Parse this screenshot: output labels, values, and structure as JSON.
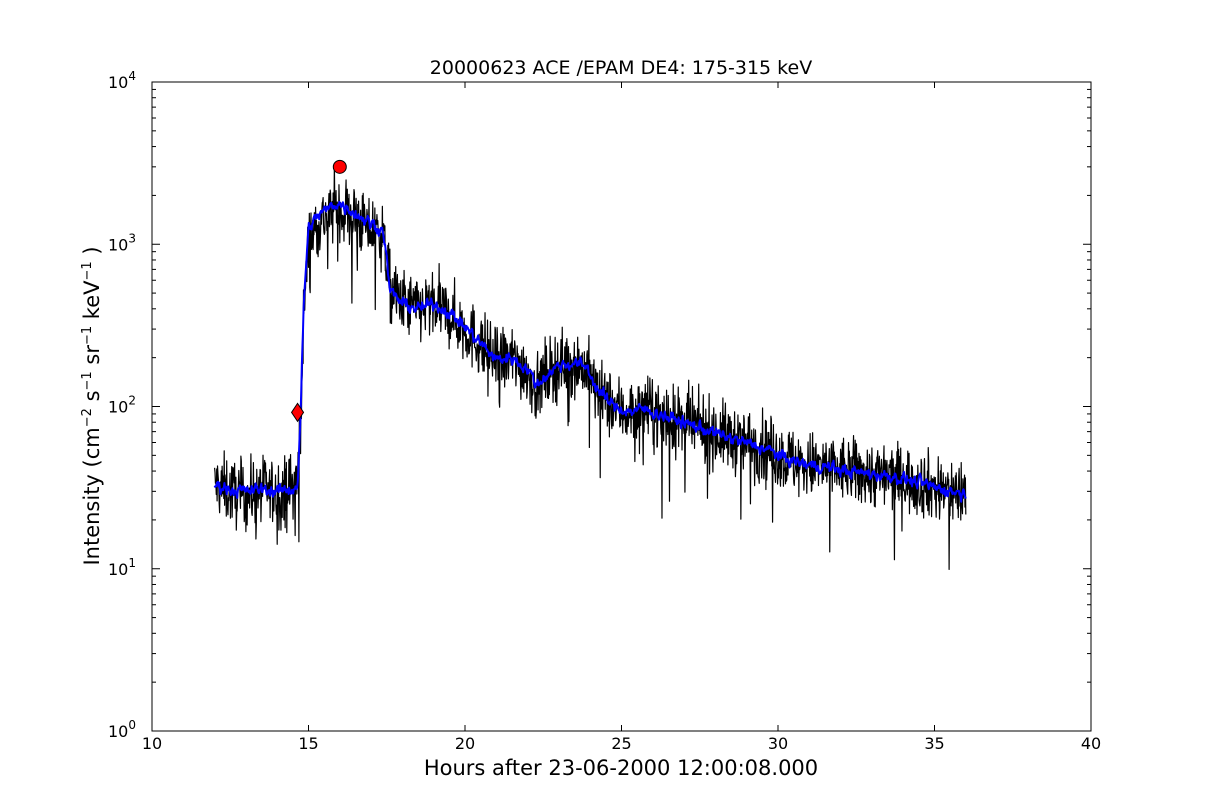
{
  "chart_data": {
    "type": "line",
    "title": "20000623 ACE /EPAM DE4: 175-315 keV",
    "xlabel": "Hours after 23-06-2000 12:00:08.000",
    "ylabel": {
      "text": "Intensity (cm",
      "sup1": "−2",
      "mid1": " s",
      "sup2": "−1",
      "mid2": " sr",
      "sup3": "−1",
      "mid3": " keV",
      "sup4": "−1",
      "end": " )"
    },
    "xlim": [
      10,
      40
    ],
    "ylim": [
      1,
      10000
    ],
    "yscale": "log",
    "grid": false,
    "x_ticks": [
      "10",
      "15",
      "20",
      "25",
      "30",
      "35",
      "40"
    ],
    "y_ticks": [
      {
        "base": "10",
        "exp": "0"
      },
      {
        "base": "10",
        "exp": "1"
      },
      {
        "base": "10",
        "exp": "2"
      },
      {
        "base": "10",
        "exp": "3"
      },
      {
        "base": "10",
        "exp": "4"
      }
    ],
    "series": [
      {
        "color": "#000000",
        "style": "raw-noisy",
        "x": [
          12.0,
          12.5,
          13.0,
          13.5,
          14.0,
          14.5,
          14.65,
          14.75,
          14.85,
          15.0,
          15.3,
          15.6,
          15.9,
          16.2,
          16.6,
          17.0,
          17.4,
          17.6,
          18.0,
          18.5,
          19.0,
          19.5,
          20.0,
          20.5,
          21.0,
          21.5,
          22.0,
          22.3,
          22.5,
          23.0,
          23.5,
          23.9,
          24.2,
          24.7,
          25.2,
          25.7,
          26.2,
          26.7,
          27.2,
          27.7,
          28.2,
          28.7,
          29.2,
          29.7,
          30.2,
          30.7,
          31.2,
          31.7,
          32.2,
          32.7,
          33.2,
          33.7,
          34.2,
          34.7,
          35.2,
          35.6,
          36.0
        ],
        "y": [
          33,
          30,
          28,
          31,
          29,
          32,
          35,
          90,
          380,
          1050,
          1350,
          1500,
          1700,
          1600,
          1400,
          1250,
          1100,
          530,
          430,
          400,
          420,
          370,
          300,
          240,
          190,
          195,
          165,
          125,
          155,
          180,
          185,
          170,
          125,
          100,
          92,
          95,
          90,
          82,
          76,
          72,
          66,
          62,
          58,
          54,
          48,
          44,
          43,
          42,
          40,
          39,
          38,
          37,
          35,
          33,
          31,
          30,
          29
        ],
        "noise": 0.45
      },
      {
        "color": "#0000ff",
        "style": "smoothed",
        "x": [
          12.0,
          12.5,
          13.0,
          13.5,
          14.0,
          14.5,
          14.65,
          14.75,
          14.85,
          15.0,
          15.3,
          15.6,
          15.9,
          16.2,
          16.6,
          17.0,
          17.4,
          17.6,
          18.0,
          18.5,
          19.0,
          19.5,
          20.0,
          20.5,
          21.0,
          21.5,
          22.0,
          22.3,
          22.5,
          23.0,
          23.5,
          23.9,
          24.2,
          24.7,
          25.2,
          25.7,
          26.2,
          26.7,
          27.2,
          27.7,
          28.2,
          28.7,
          29.2,
          29.7,
          30.2,
          30.7,
          31.2,
          31.7,
          32.2,
          32.7,
          33.2,
          33.7,
          34.2,
          34.7,
          35.2,
          35.6,
          36.0
        ],
        "y": [
          33,
          31,
          30,
          31,
          30,
          31,
          33,
          90,
          450,
          1250,
          1500,
          1650,
          1800,
          1700,
          1500,
          1350,
          1200,
          520,
          430,
          400,
          430,
          380,
          310,
          245,
          195,
          200,
          170,
          135,
          150,
          180,
          185,
          175,
          130,
          102,
          93,
          96,
          90,
          83,
          77,
          72,
          66,
          62,
          58,
          54,
          48,
          45,
          43,
          42,
          40,
          39,
          38,
          37,
          35,
          33,
          31,
          30,
          29
        ],
        "noise": 0.12
      }
    ],
    "markers": [
      {
        "shape": "diamond",
        "color": "#ff0000",
        "x": 14.65,
        "y": 92
      },
      {
        "shape": "circle",
        "color": "#ff0000",
        "x": 16.0,
        "y": 3000
      }
    ]
  }
}
